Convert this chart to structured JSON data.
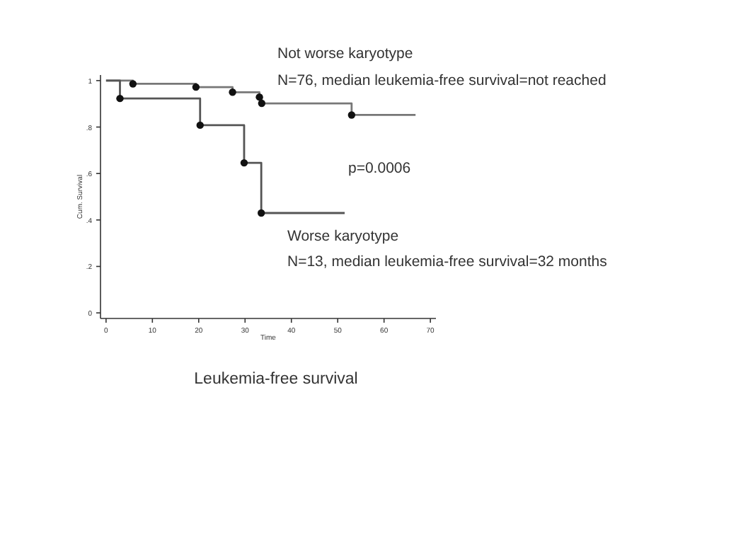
{
  "chart_data": {
    "type": "step",
    "title": "Leukemia-free survival",
    "xlabel": "Time",
    "ylabel": "Cum. Survival",
    "xlim": [
      -1.2,
      71.2
    ],
    "ylim": [
      -0.024,
      1.024
    ],
    "xticks": [
      0,
      10,
      20,
      30,
      40,
      50,
      60,
      70
    ],
    "yticks": [
      {
        "value": 0,
        "label": "0"
      },
      {
        "value": 0.2,
        "label": ".2"
      },
      {
        "value": 0.4,
        "label": ".4"
      },
      {
        "value": 0.6,
        "label": ".6"
      },
      {
        "value": 0.8,
        "label": ".8"
      },
      {
        "value": 1,
        "label": "1"
      }
    ],
    "grid": false,
    "series": [
      {
        "type": "step",
        "color": "#777777",
        "x": [
          0,
          5.8,
          19.4,
          27.3,
          33.1,
          33.6,
          53,
          66.8
        ],
        "values": [
          1,
          0.986,
          0.972,
          0.95,
          0.929,
          0.902,
          0.852,
          0.852
        ]
      },
      {
        "type": "step",
        "color": "#555555",
        "x": [
          0,
          3,
          20.3,
          29.8,
          33.5,
          51.5
        ],
        "values": [
          1,
          0.923,
          0.808,
          0.646,
          0.43,
          0.43
        ]
      },
      {
        "type": "scatter",
        "color": "#111111",
        "x": [
          5.8,
          19.4,
          27.3,
          33.1,
          33.6,
          53
        ],
        "values": [
          0.986,
          0.972,
          0.95,
          0.929,
          0.902,
          0.852
        ]
      },
      {
        "type": "scatter",
        "color": "#111111",
        "x": [
          3,
          20.3,
          29.8,
          33.5
        ],
        "values": [
          0.923,
          0.808,
          0.646,
          0.43
        ]
      }
    ],
    "annotations": [
      "Not worse karyotype",
      "N=76, median leukemia-free survival=not reached",
      "p=0.0006",
      "Worse karyotype",
      "N=13, median leukemia-free survival=32 months"
    ]
  }
}
